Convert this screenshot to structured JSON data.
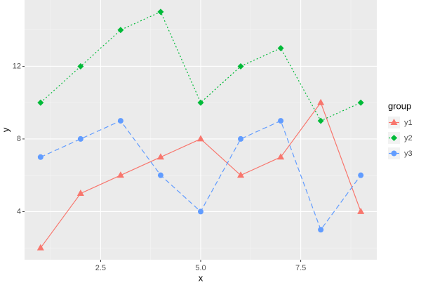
{
  "chart_data": {
    "type": "line",
    "x_label": "x",
    "y_label": "y",
    "x": [
      1,
      2,
      3,
      4,
      5,
      6,
      7,
      8,
      9
    ],
    "series": [
      {
        "name": "y1",
        "color": "#F8766D",
        "linetype": "solid",
        "shape": "triangle",
        "values": [
          2,
          5,
          6,
          7,
          8,
          6,
          7,
          10,
          4
        ]
      },
      {
        "name": "y2",
        "color": "#00BA38",
        "linetype": "dotted",
        "shape": "diamond",
        "values": [
          10,
          12,
          14,
          15,
          10,
          12,
          13,
          9,
          10
        ]
      },
      {
        "name": "y3",
        "color": "#619CFF",
        "linetype": "dashed",
        "shape": "circle",
        "values": [
          7,
          8,
          9,
          6,
          4,
          8,
          9,
          3,
          6
        ]
      }
    ],
    "legend_title": "group",
    "legend_position": "right",
    "xlim": [
      0.6,
      9.4
    ],
    "xticks": [
      2.5,
      {
        "value": 5,
        "label": "5.0"
      },
      7.5
    ],
    "ylim": [
      1.35,
      15.65
    ],
    "yticks": [
      4,
      8,
      12
    ],
    "grid": true
  }
}
